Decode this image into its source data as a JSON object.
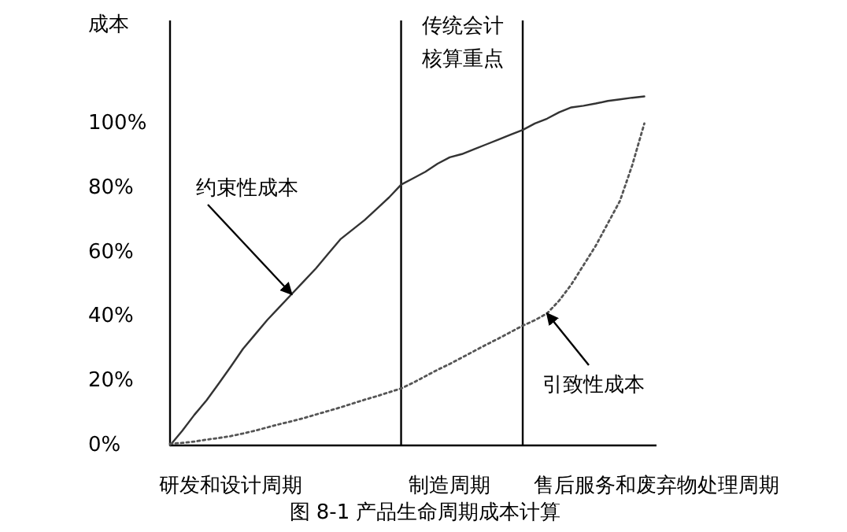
{
  "chart_data": {
    "type": "line",
    "title": "图 8-1 产品生命周期成本计算",
    "ylabel": "成本",
    "ylim": [
      0,
      132
    ],
    "categories": [
      null,
      null,
      null,
      null,
      null,
      "研发和设计周期",
      null,
      null,
      null,
      null,
      null,
      null,
      null,
      null,
      null,
      null,
      null,
      null,
      null,
      null,
      null,
      null,
      null,
      "制造周期",
      null,
      null,
      null,
      null,
      null,
      null,
      null,
      null,
      null,
      null,
      null,
      null,
      null,
      null,
      null,
      null,
      "售后服务和废弃物处理周期"
    ],
    "yticks": [
      {
        "value": 0,
        "label": "0%"
      },
      {
        "value": 20,
        "label": "20%"
      },
      {
        "value": 40,
        "label": "40%"
      },
      {
        "value": 60,
        "label": "60%"
      },
      {
        "value": 80,
        "label": "80%"
      },
      {
        "value": 100,
        "label": "100%"
      }
    ],
    "series": [
      {
        "name": "约束性成本",
        "color": "#333333",
        "line_style": "solid",
        "values": [
          0,
          4.5,
          9.5,
          14,
          19.2,
          24.5,
          30,
          34.5,
          39,
          43,
          47,
          51,
          55,
          59.5,
          64,
          67,
          70,
          73.5,
          77,
          81,
          83,
          85,
          87.5,
          89.5,
          90.5,
          92,
          93.5,
          95,
          96.5,
          98,
          100,
          101.5,
          103.5,
          105,
          105.5,
          106.2,
          107,
          107.5,
          108,
          108.4,
          null
        ]
      },
      {
        "name": "引致性成本",
        "color": "#555555",
        "line_style": "dotted",
        "values": [
          0.5,
          0.8,
          1.2,
          1.8,
          2.3,
          2.9,
          3.7,
          4.6,
          5.6,
          6.6,
          7.5,
          8.5,
          9.6,
          10.7,
          11.8,
          13,
          14.2,
          15.3,
          16.5,
          17.7,
          19.5,
          21.5,
          23.5,
          25.3,
          27.3,
          29.3,
          31.3,
          33.2,
          35.2,
          37.2,
          38.9,
          41,
          45,
          50,
          56,
          62,
          69,
          76,
          87,
          100,
          null
        ]
      }
    ],
    "annotations": [
      "传统会计核算重点"
    ],
    "grid": false
  }
}
